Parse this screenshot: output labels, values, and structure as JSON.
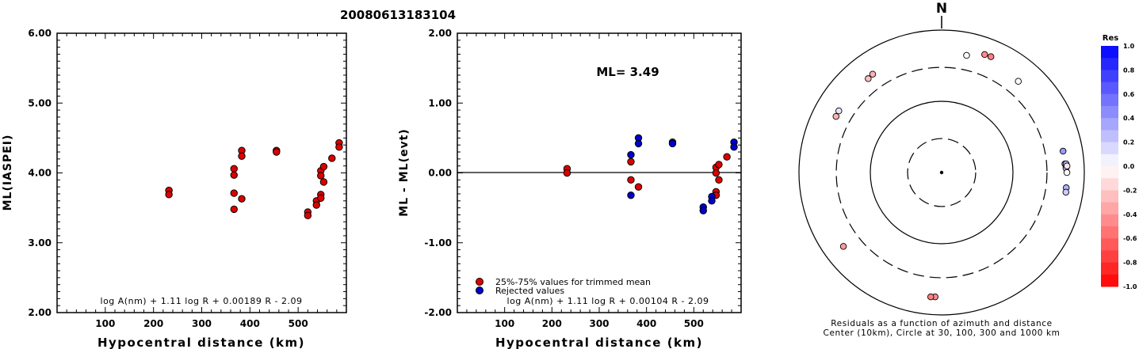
{
  "title": "20080613183104",
  "chart_data": [
    {
      "type": "scatter",
      "id": "ml-vs-distance",
      "xlabel": "Hypocentral distance (km)",
      "ylabel": "ML(IASPEI)",
      "xlim": [
        0,
        600
      ],
      "ylim": [
        2.0,
        6.0
      ],
      "xticks": [
        100,
        200,
        300,
        400,
        500
      ],
      "xtick_labels": [
        "100",
        "200",
        "300",
        "400",
        "500"
      ],
      "yticks": [
        2.0,
        3.0,
        4.0,
        5.0,
        6.0
      ],
      "ytick_labels": [
        "2.00",
        "3.00",
        "4.00",
        "5.00",
        "6.00"
      ],
      "formula": "log A(nm) + 1.11 log R + 0.00189 R - 2.09",
      "point_color": "#dd0000",
      "points": [
        [
          232,
          3.75
        ],
        [
          232,
          3.69
        ],
        [
          367,
          4.06
        ],
        [
          367,
          3.97
        ],
        [
          367,
          3.71
        ],
        [
          367,
          3.48
        ],
        [
          383,
          4.32
        ],
        [
          383,
          4.24
        ],
        [
          383,
          3.63
        ],
        [
          455,
          4.32
        ],
        [
          455,
          4.3
        ],
        [
          520,
          3.44
        ],
        [
          520,
          3.39
        ],
        [
          538,
          3.6
        ],
        [
          538,
          3.54
        ],
        [
          547,
          4.03
        ],
        [
          547,
          3.96
        ],
        [
          547,
          3.69
        ],
        [
          547,
          3.64
        ],
        [
          553,
          4.09
        ],
        [
          553,
          3.87
        ],
        [
          570,
          4.21
        ],
        [
          585,
          4.43
        ],
        [
          585,
          4.37
        ]
      ]
    },
    {
      "type": "scatter",
      "id": "residual-vs-distance",
      "xlabel": "Hypocentral distance (km)",
      "ylabel": "ML - ML(evt)",
      "xlim": [
        0,
        600
      ],
      "ylim": [
        -2.0,
        2.0
      ],
      "xticks": [
        100,
        200,
        300,
        400,
        500
      ],
      "xtick_labels": [
        "100",
        "200",
        "300",
        "400",
        "500"
      ],
      "yticks": [
        -2.0,
        -1.0,
        0.0,
        1.0,
        2.0
      ],
      "ytick_labels": [
        "-2.00",
        "-1.00",
        "0.00",
        "1.00",
        "2.00"
      ],
      "annotation": "ML= 3.49",
      "formula": "log A(nm) + 1.11 log R + 0.00104 R - 2.09",
      "legend": [
        {
          "label": "25%-75% values for trimmed mean",
          "color": "#dd0000"
        },
        {
          "label": "Rejected values",
          "color": "#0000cc"
        }
      ],
      "series": [
        {
          "name": "25%-75% values for trimmed mean",
          "color": "#dd0000",
          "points": [
            [
              232,
              0.06
            ],
            [
              232,
              0.0
            ],
            [
              367,
              0.16
            ],
            [
              367,
              -0.1
            ],
            [
              383,
              -0.2
            ],
            [
              547,
              0.08
            ],
            [
              547,
              0.0
            ],
            [
              547,
              -0.27
            ],
            [
              547,
              -0.32
            ],
            [
              553,
              0.12
            ],
            [
              553,
              -0.1
            ],
            [
              570,
              0.23
            ]
          ]
        },
        {
          "name": "Rejected values",
          "color": "#0000cc",
          "points": [
            [
              367,
              0.26
            ],
            [
              367,
              -0.32
            ],
            [
              383,
              0.5
            ],
            [
              383,
              0.42
            ],
            [
              455,
              0.44
            ],
            [
              455,
              0.42
            ],
            [
              520,
              -0.49
            ],
            [
              520,
              -0.54
            ],
            [
              538,
              -0.34
            ],
            [
              538,
              -0.4
            ],
            [
              585,
              0.44
            ],
            [
              585,
              0.37
            ]
          ]
        }
      ]
    },
    {
      "type": "polar-scatter",
      "id": "residual-azimuth-distance",
      "north_label": "N",
      "caption_line1": "Residuals as a function of azimuth and distance",
      "caption_line2": "Center (10km), Circle at 30, 100, 300 and 1000 km",
      "rings_km": [
        30,
        100,
        300,
        1000
      ],
      "points": [
        {
          "azimuth": 20,
          "distance_km": 580,
          "res": -0.45
        },
        {
          "azimuth": 23,
          "distance_km": 585,
          "res": -0.5
        },
        {
          "azimuth": 12,
          "distance_km": 480,
          "res": 0.0
        },
        {
          "azimuth": 40,
          "distance_km": 470,
          "res": 0.0
        },
        {
          "azimuth": 322,
          "distance_km": 470,
          "res": -0.25
        },
        {
          "azimuth": 325,
          "distance_km": 485,
          "res": -0.3
        },
        {
          "azimuth": 298,
          "distance_km": 475,
          "res": -0.3
        },
        {
          "azimuth": 301,
          "distance_km": 480,
          "res": 0.1
        },
        {
          "azimuth": 80,
          "distance_km": 535,
          "res": 0.4
        },
        {
          "azimuth": 86,
          "distance_km": 540,
          "res": 0.3
        },
        {
          "azimuth": 86,
          "distance_km": 560,
          "res": 0.3
        },
        {
          "azimuth": 88,
          "distance_km": 555,
          "res": 0.3
        },
        {
          "azimuth": 87,
          "distance_km": 575,
          "res": -0.1
        },
        {
          "azimuth": 90,
          "distance_km": 570,
          "res": 0.0
        },
        {
          "azimuth": 97,
          "distance_km": 575,
          "res": 0.3
        },
        {
          "azimuth": 99,
          "distance_km": 580,
          "res": 0.2
        },
        {
          "azimuth": 183,
          "distance_km": 560,
          "res": -0.45
        },
        {
          "azimuth": 185,
          "distance_km": 565,
          "res": -0.5
        },
        {
          "azimuth": 233,
          "distance_km": 530,
          "res": -0.4
        }
      ]
    }
  ],
  "colorbar": {
    "title": "Res",
    "ticks": [
      "1.0",
      "0.8",
      "0.6",
      "0.4",
      "0.2",
      "0.0",
      "-0.2",
      "-0.4",
      "-0.6",
      "-0.8",
      "-1.0"
    ]
  }
}
